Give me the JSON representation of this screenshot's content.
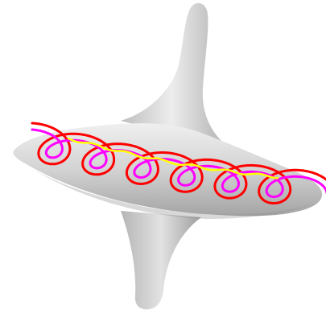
{
  "figure": {
    "description_label": "",
    "colors": {
      "background": "#ffffff",
      "surface_light": "#f2f2f2",
      "surface_mid": "#cfcfcf",
      "surface_dark": "#9a9a9a",
      "curve_outer": "#ff0000",
      "curve_middle": "#ff00ff",
      "curve_inner": "#ffff00"
    },
    "objects": [
      {
        "name": "surface",
        "kind": "spinning-top surface"
      },
      {
        "name": "curve-outer",
        "color_key": "curve_outer"
      },
      {
        "name": "curve-middle",
        "color_key": "curve_middle"
      },
      {
        "name": "curve-inner",
        "color_key": "curve_inner"
      }
    ]
  }
}
